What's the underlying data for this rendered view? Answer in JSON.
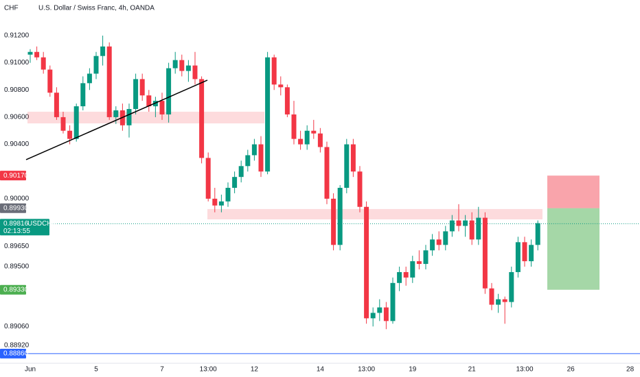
{
  "chart_data": {
    "type": "candlestick",
    "title": "U.S. Dollar / Swiss Franc, 4h, OANDA",
    "currency": "CHF",
    "up_color": "#089981",
    "down_color": "#f23645",
    "ylim": [
      0.88789,
      0.91462
    ],
    "yticks": [
      {
        "value": 0.912,
        "label": "0.91200"
      },
      {
        "value": 0.91,
        "label": "0.91000"
      },
      {
        "value": 0.908,
        "label": "0.90800"
      },
      {
        "value": 0.906,
        "label": "0.90600"
      },
      {
        "value": 0.904,
        "label": "0.90400"
      },
      {
        "value": 0.9,
        "label": "0.90000"
      },
      {
        "value": 0.8965,
        "label": "0.89650"
      },
      {
        "value": 0.895,
        "label": "0.89500"
      },
      {
        "value": 0.8906,
        "label": "0.89060"
      },
      {
        "value": 0.8892,
        "label": "0.88920"
      }
    ],
    "categories": [
      "Jun",
      null,
      null,
      null,
      null,
      null,
      null,
      null,
      null,
      null,
      "5",
      null,
      null,
      null,
      null,
      null,
      null,
      null,
      null,
      null,
      "7",
      null,
      null,
      null,
      null,
      null,
      null,
      "13:00",
      null,
      null,
      null,
      null,
      null,
      null,
      "12",
      null,
      null,
      null,
      null,
      null,
      null,
      null,
      null,
      null,
      "14",
      null,
      null,
      null,
      null,
      null,
      null,
      "13:00",
      null,
      null,
      null,
      null,
      null,
      null,
      "19",
      null,
      null,
      null,
      null,
      null,
      null,
      null,
      null,
      "21",
      null,
      null,
      null,
      null,
      null,
      null,
      null,
      "13:00",
      null,
      null,
      null,
      null,
      null,
      null,
      "26",
      null,
      null,
      null,
      null,
      null,
      null,
      null,
      null,
      "28"
    ],
    "ohlc": [
      [
        0.9106,
        0.911,
        0.91,
        0.9108
      ],
      [
        0.9108,
        0.9112,
        0.9102,
        0.9104
      ],
      [
        0.9104,
        0.9108,
        0.9092,
        0.9095
      ],
      [
        0.9095,
        0.9098,
        0.9075,
        0.9078
      ],
      [
        0.9078,
        0.9082,
        0.9058,
        0.906
      ],
      [
        0.906,
        0.9064,
        0.9048,
        0.905
      ],
      [
        0.905,
        0.9054,
        0.904,
        0.9044
      ],
      [
        0.9044,
        0.907,
        0.9042,
        0.9068
      ],
      [
        0.9068,
        0.909,
        0.9065,
        0.9085
      ],
      [
        0.9085,
        0.9096,
        0.908,
        0.9092
      ],
      [
        0.9092,
        0.9108,
        0.9088,
        0.9105
      ],
      [
        0.9105,
        0.912,
        0.9098,
        0.9112
      ],
      [
        0.9112,
        0.9115,
        0.9058,
        0.906
      ],
      [
        0.906,
        0.9068,
        0.9055,
        0.9065
      ],
      [
        0.9065,
        0.907,
        0.905,
        0.9054
      ],
      [
        0.9054,
        0.907,
        0.9045,
        0.9066
      ],
      [
        0.9066,
        0.9092,
        0.9062,
        0.9088
      ],
      [
        0.9088,
        0.9092,
        0.9072,
        0.9076
      ],
      [
        0.9076,
        0.908,
        0.9064,
        0.9068
      ],
      [
        0.9068,
        0.9075,
        0.906,
        0.9072
      ],
      [
        0.9072,
        0.9078,
        0.9058,
        0.9062
      ],
      [
        0.9062,
        0.91,
        0.9056,
        0.9096
      ],
      [
        0.9096,
        0.9108,
        0.9092,
        0.9102
      ],
      [
        0.9102,
        0.9106,
        0.909,
        0.9094
      ],
      [
        0.9094,
        0.9102,
        0.9086,
        0.9098
      ],
      [
        0.9098,
        0.9108,
        0.9084,
        0.9088
      ],
      [
        0.9088,
        0.909,
        0.9026,
        0.903
      ],
      [
        0.903,
        0.9034,
        0.8998,
        0.9
      ],
      [
        0.9,
        0.9008,
        0.899,
        0.8995
      ],
      [
        0.8995,
        0.9003,
        0.899,
        0.8998
      ],
      [
        0.8998,
        0.9012,
        0.8994,
        0.9008
      ],
      [
        0.9008,
        0.902,
        0.9004,
        0.9016
      ],
      [
        0.9016,
        0.9028,
        0.9012,
        0.9024
      ],
      [
        0.9024,
        0.9036,
        0.902,
        0.9032
      ],
      [
        0.9032,
        0.9044,
        0.9028,
        0.904
      ],
      [
        0.904,
        0.9046,
        0.9016,
        0.902
      ],
      [
        0.902,
        0.9108,
        0.9018,
        0.9104
      ],
      [
        0.9104,
        0.9106,
        0.908,
        0.9084
      ],
      [
        0.9084,
        0.909,
        0.9076,
        0.9082
      ],
      [
        0.9082,
        0.9084,
        0.906,
        0.9062
      ],
      [
        0.9062,
        0.9072,
        0.904,
        0.9044
      ],
      [
        0.9044,
        0.905,
        0.9036,
        0.904
      ],
      [
        0.904,
        0.9054,
        0.9036,
        0.905
      ],
      [
        0.905,
        0.9058,
        0.9044,
        0.9048
      ],
      [
        0.9048,
        0.9052,
        0.9034,
        0.9038
      ],
      [
        0.9038,
        0.9042,
        0.8996,
        0.9
      ],
      [
        0.9,
        0.9004,
        0.8962,
        0.8966
      ],
      [
        0.8966,
        0.901,
        0.8962,
        0.9008
      ],
      [
        0.9008,
        0.9044,
        0.9004,
        0.904
      ],
      [
        0.904,
        0.9044,
        0.9016,
        0.902
      ],
      [
        0.902,
        0.9024,
        0.899,
        0.8994
      ],
      [
        0.8994,
        0.8998,
        0.8908,
        0.8912
      ],
      [
        0.8912,
        0.892,
        0.8906,
        0.8916
      ],
      [
        0.8916,
        0.8926,
        0.891,
        0.892
      ],
      [
        0.892,
        0.8924,
        0.8904,
        0.891
      ],
      [
        0.891,
        0.8942,
        0.8908,
        0.8938
      ],
      [
        0.8938,
        0.895,
        0.8932,
        0.8946
      ],
      [
        0.8946,
        0.895,
        0.8936,
        0.8942
      ],
      [
        0.8942,
        0.8958,
        0.8938,
        0.8954
      ],
      [
        0.8954,
        0.8962,
        0.8948,
        0.8952
      ],
      [
        0.8952,
        0.8966,
        0.8948,
        0.8962
      ],
      [
        0.8962,
        0.8974,
        0.8958,
        0.897
      ],
      [
        0.897,
        0.8976,
        0.8962,
        0.8966
      ],
      [
        0.8966,
        0.898,
        0.8962,
        0.8976
      ],
      [
        0.8976,
        0.8988,
        0.8972,
        0.8984
      ],
      [
        0.8984,
        0.8996,
        0.8976,
        0.898
      ],
      [
        0.898,
        0.8988,
        0.8972,
        0.8984
      ],
      [
        0.8984,
        0.899,
        0.8966,
        0.897
      ],
      [
        0.897,
        0.8994,
        0.8966,
        0.8986
      ],
      [
        0.8986,
        0.899,
        0.893,
        0.8934
      ],
      [
        0.8934,
        0.8938,
        0.8918,
        0.8922
      ],
      [
        0.8922,
        0.893,
        0.8916,
        0.8926
      ],
      [
        0.8926,
        0.8928,
        0.8908,
        0.8924
      ],
      [
        0.8924,
        0.895,
        0.892,
        0.8946
      ],
      [
        0.8946,
        0.8972,
        0.8942,
        0.8968
      ],
      [
        0.8968,
        0.8972,
        0.895,
        0.8954
      ],
      [
        0.8954,
        0.897,
        0.895,
        0.8966
      ],
      [
        0.8966,
        0.8984,
        0.8962,
        0.8982
      ],
      null,
      null,
      null,
      null,
      null,
      null,
      null,
      null,
      null,
      null,
      null,
      null,
      null,
      null
    ],
    "trendline": [
      0.90287,
      0.90872
    ],
    "zones": [
      [
        0.9064,
        0.90554
      ],
      [
        0.89924,
        0.89848
      ]
    ],
    "position": {
      "stop": {
        "value": 0.9017,
        "label": "0.90170"
      },
      "entry": {
        "value": 0.8993,
        "label": "0.89930"
      },
      "target": {
        "value": 0.8933,
        "label": "0.89330"
      }
    },
    "last_price": {
      "value": 0.89816,
      "label": "0.89816",
      "symbol": "USDCHF",
      "countdown": "02:13:55"
    },
    "level_line": {
      "value": 0.8886,
      "label": "0.88860",
      "color": "#2962ff"
    }
  }
}
